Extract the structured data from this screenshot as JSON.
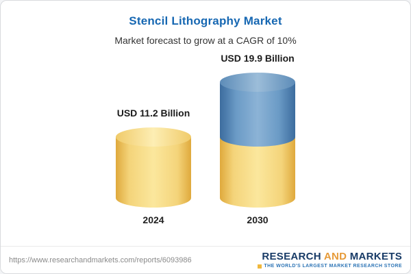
{
  "header": {
    "title": "Stencil Lithography Market",
    "subtitle": "Market forecast to grow at a CAGR of 10%"
  },
  "chart_data": {
    "type": "bar",
    "title": "Stencil Lithography Market",
    "subtitle": "Market forecast to grow at a CAGR of 10%",
    "categories": [
      "2024",
      "2030"
    ],
    "values": [
      11.2,
      19.9
    ],
    "value_labels": [
      "USD 11.2 Billion",
      "USD 19.9 Billion"
    ],
    "unit": "USD Billion",
    "cagr": "10%",
    "legend": "off",
    "grid": "off",
    "colors": {
      "bar_2024": "#f4d47a",
      "bar_2030_bottom": "#f4d47a",
      "bar_2030_top": "#6b9bc6",
      "title": "#1667b2"
    }
  },
  "footer": {
    "url": "https://www.researchandmarkets.com/reports/6093986",
    "logo": {
      "part1": "RESEARCH",
      "part2": "AND",
      "part3": "MARKETS",
      "tagline": "THE WORLD'S LARGEST MARKET RESEARCH STORE"
    }
  }
}
